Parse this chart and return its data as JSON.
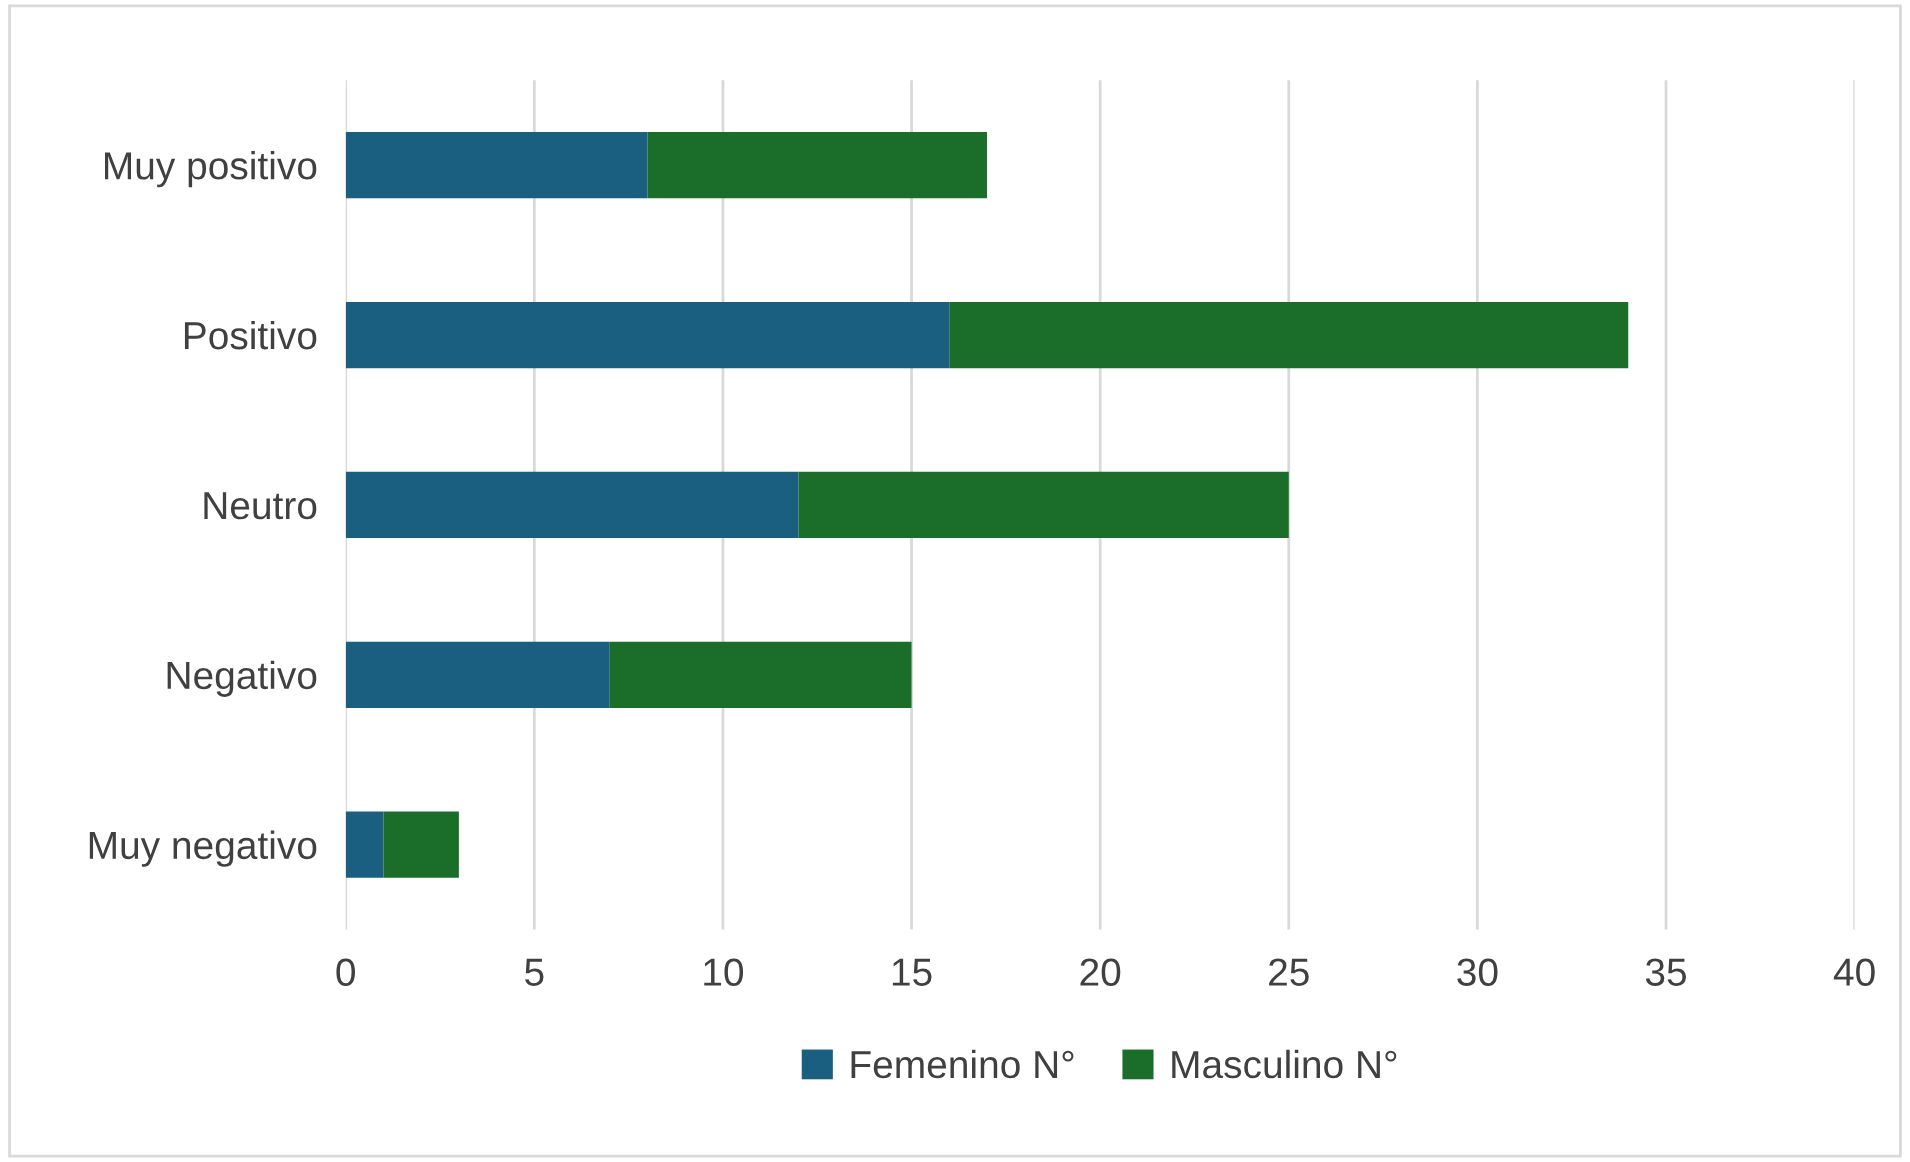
{
  "chart_data": {
    "type": "bar",
    "orientation": "horizontal",
    "stacked": true,
    "categories": [
      "Muy positivo",
      "Positivo",
      "Neutro",
      "Negativo",
      "Muy negativo"
    ],
    "series": [
      {
        "name": "Femenino N°",
        "color": "#1a5e80",
        "values": [
          8,
          16,
          12,
          7,
          1
        ]
      },
      {
        "name": "Masculino N°",
        "color": "#1b6e2a",
        "values": [
          9,
          18,
          13,
          8,
          2
        ]
      }
    ],
    "xlim": [
      0,
      40
    ],
    "xticks": [
      0,
      5,
      10,
      15,
      20,
      25,
      30,
      35,
      40
    ],
    "grid": "x",
    "legend": "bottom"
  }
}
